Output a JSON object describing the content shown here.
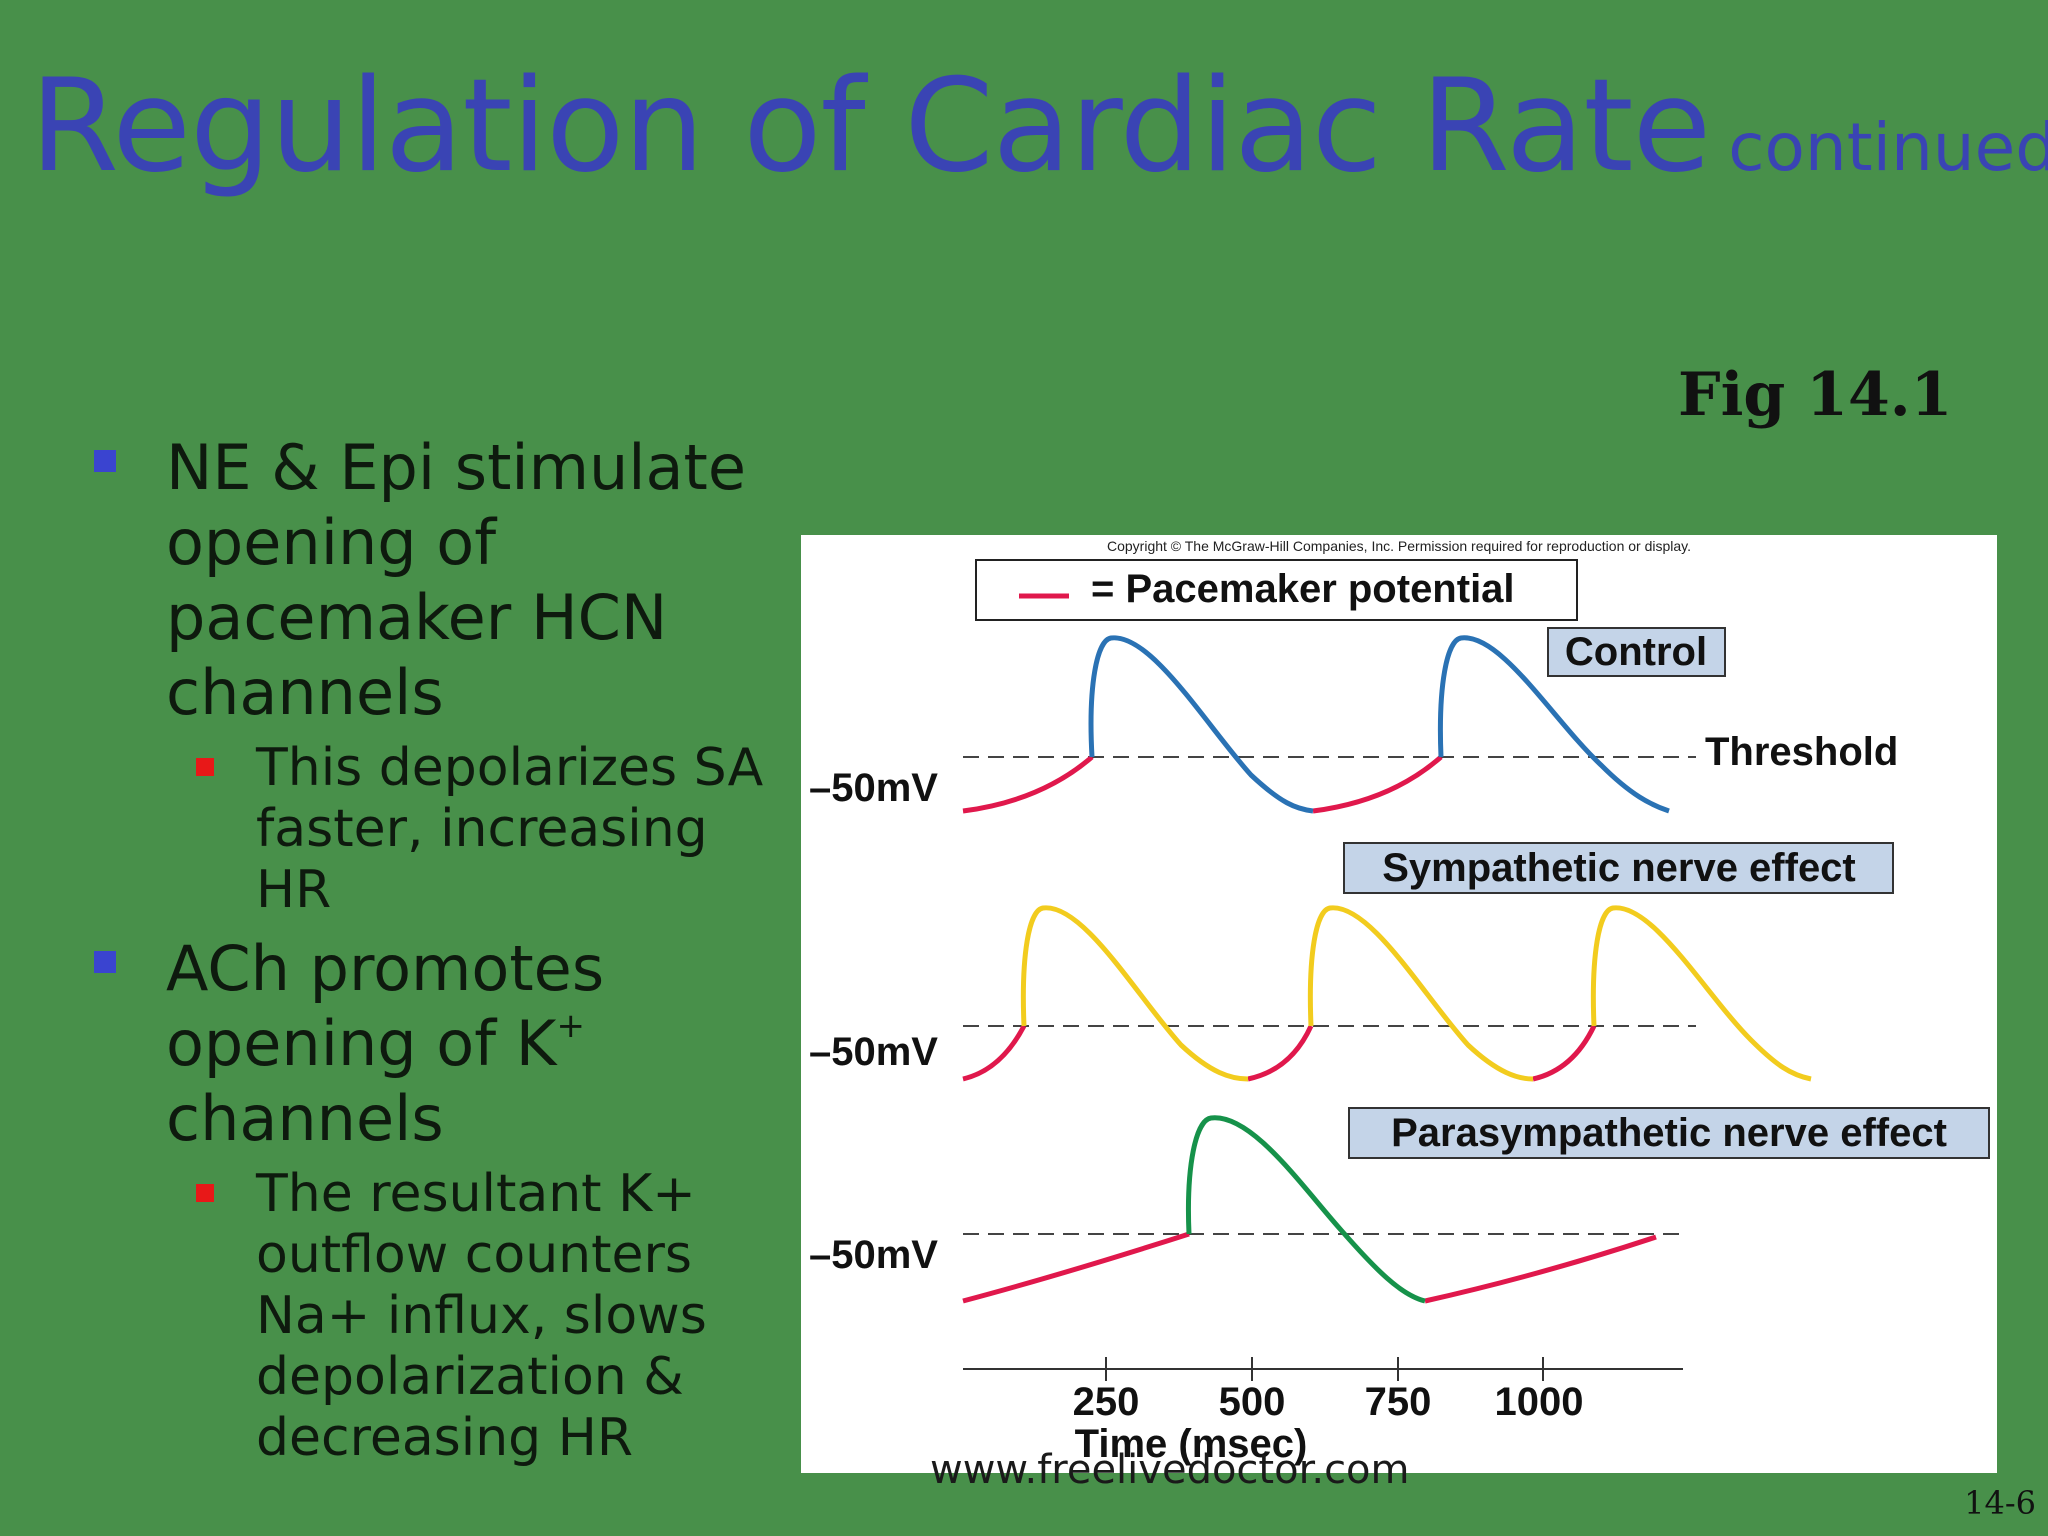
{
  "slide": {
    "title": "Regulation of Cardiac Rate",
    "title_suffix": "continued",
    "fig_label": "Fig 14.1",
    "page_number": "14-6",
    "watermark": "www.freelivedoctor.com"
  },
  "bullets": [
    {
      "text": "NE & Epi stimulate opening of pacemaker HCN channels",
      "sub": "This depolarizes SA faster, increasing HR"
    },
    {
      "text": "ACh promotes opening of K",
      "text_sup": "+",
      "text_after": " channels",
      "sub": "The resultant K+ outflow counters Na+ influx, slows depolarization & decreasing HR"
    }
  ],
  "figure": {
    "copyright": "Copyright © The McGraw-Hill Companies, Inc. Permission required for reproduction or display.",
    "legend": "= Pacemaker potential",
    "threshold_label": "Threshold",
    "panels": [
      {
        "label": "Control",
        "voltage_label": "–50mV",
        "color": "#2a72b4"
      },
      {
        "label": "Sympathetic nerve effect",
        "voltage_label": "–50mV",
        "color": "#f2cc1e"
      },
      {
        "label": "Parasympathetic nerve effect",
        "voltage_label": "–50mV",
        "color": "#16924a"
      }
    ],
    "pacemaker_color": "#e0184c",
    "x_axis": {
      "ticks": [
        "250",
        "500",
        "750",
        "1000"
      ],
      "label": "Time (msec)"
    }
  }
}
